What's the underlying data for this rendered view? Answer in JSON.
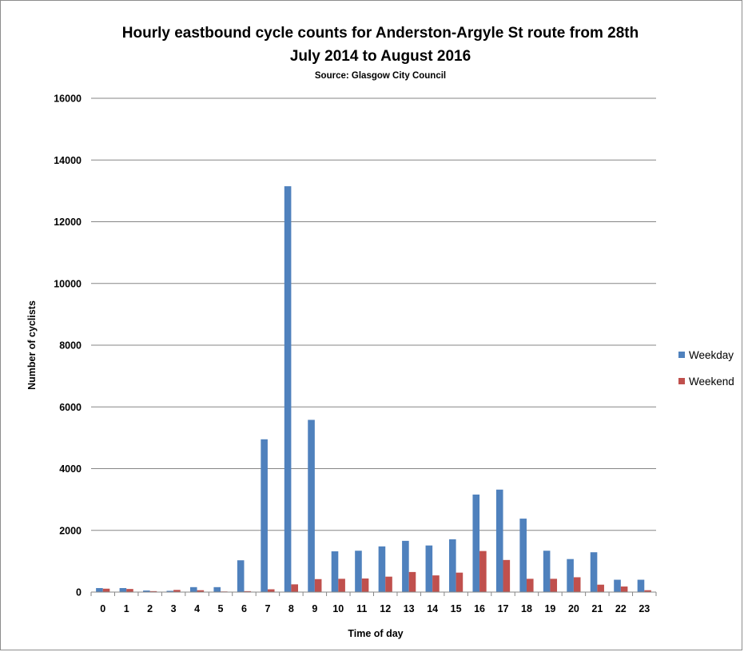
{
  "chart_data": {
    "type": "bar",
    "title_line1": "Hourly eastbound cycle counts for Anderston-Argyle St route from 28th",
    "title_line2": "July 2014 to August 2016",
    "subtitle": "Source: Glasgow City Council",
    "xlabel": "Time of day",
    "ylabel": "Number of cyclists",
    "ylim": [
      0,
      16000
    ],
    "yticks": [
      0,
      2000,
      4000,
      6000,
      8000,
      10000,
      12000,
      14000,
      16000
    ],
    "ytick_labels": [
      "0",
      "2000",
      "4000",
      "6000",
      "8000",
      "10000",
      "12000",
      "14000",
      "16000"
    ],
    "categories": [
      "0",
      "1",
      "2",
      "3",
      "4",
      "5",
      "6",
      "7",
      "8",
      "9",
      "10",
      "11",
      "12",
      "13",
      "14",
      "15",
      "16",
      "17",
      "18",
      "19",
      "20",
      "21",
      "22",
      "23"
    ],
    "grid": "horizontal",
    "legend_position": "right",
    "series": [
      {
        "name": "Weekday",
        "color": "#4f81bd",
        "values": [
          130,
          130,
          50,
          40,
          160,
          160,
          1030,
          4950,
          13150,
          5580,
          1320,
          1340,
          1480,
          1660,
          1510,
          1710,
          3160,
          3320,
          2380,
          1340,
          1070,
          1290,
          400,
          400
        ]
      },
      {
        "name": "Weekend",
        "color": "#c0504d",
        "values": [
          110,
          100,
          30,
          70,
          60,
          20,
          30,
          90,
          250,
          420,
          430,
          440,
          500,
          650,
          540,
          630,
          1330,
          1040,
          430,
          430,
          480,
          240,
          180,
          60
        ]
      }
    ]
  }
}
